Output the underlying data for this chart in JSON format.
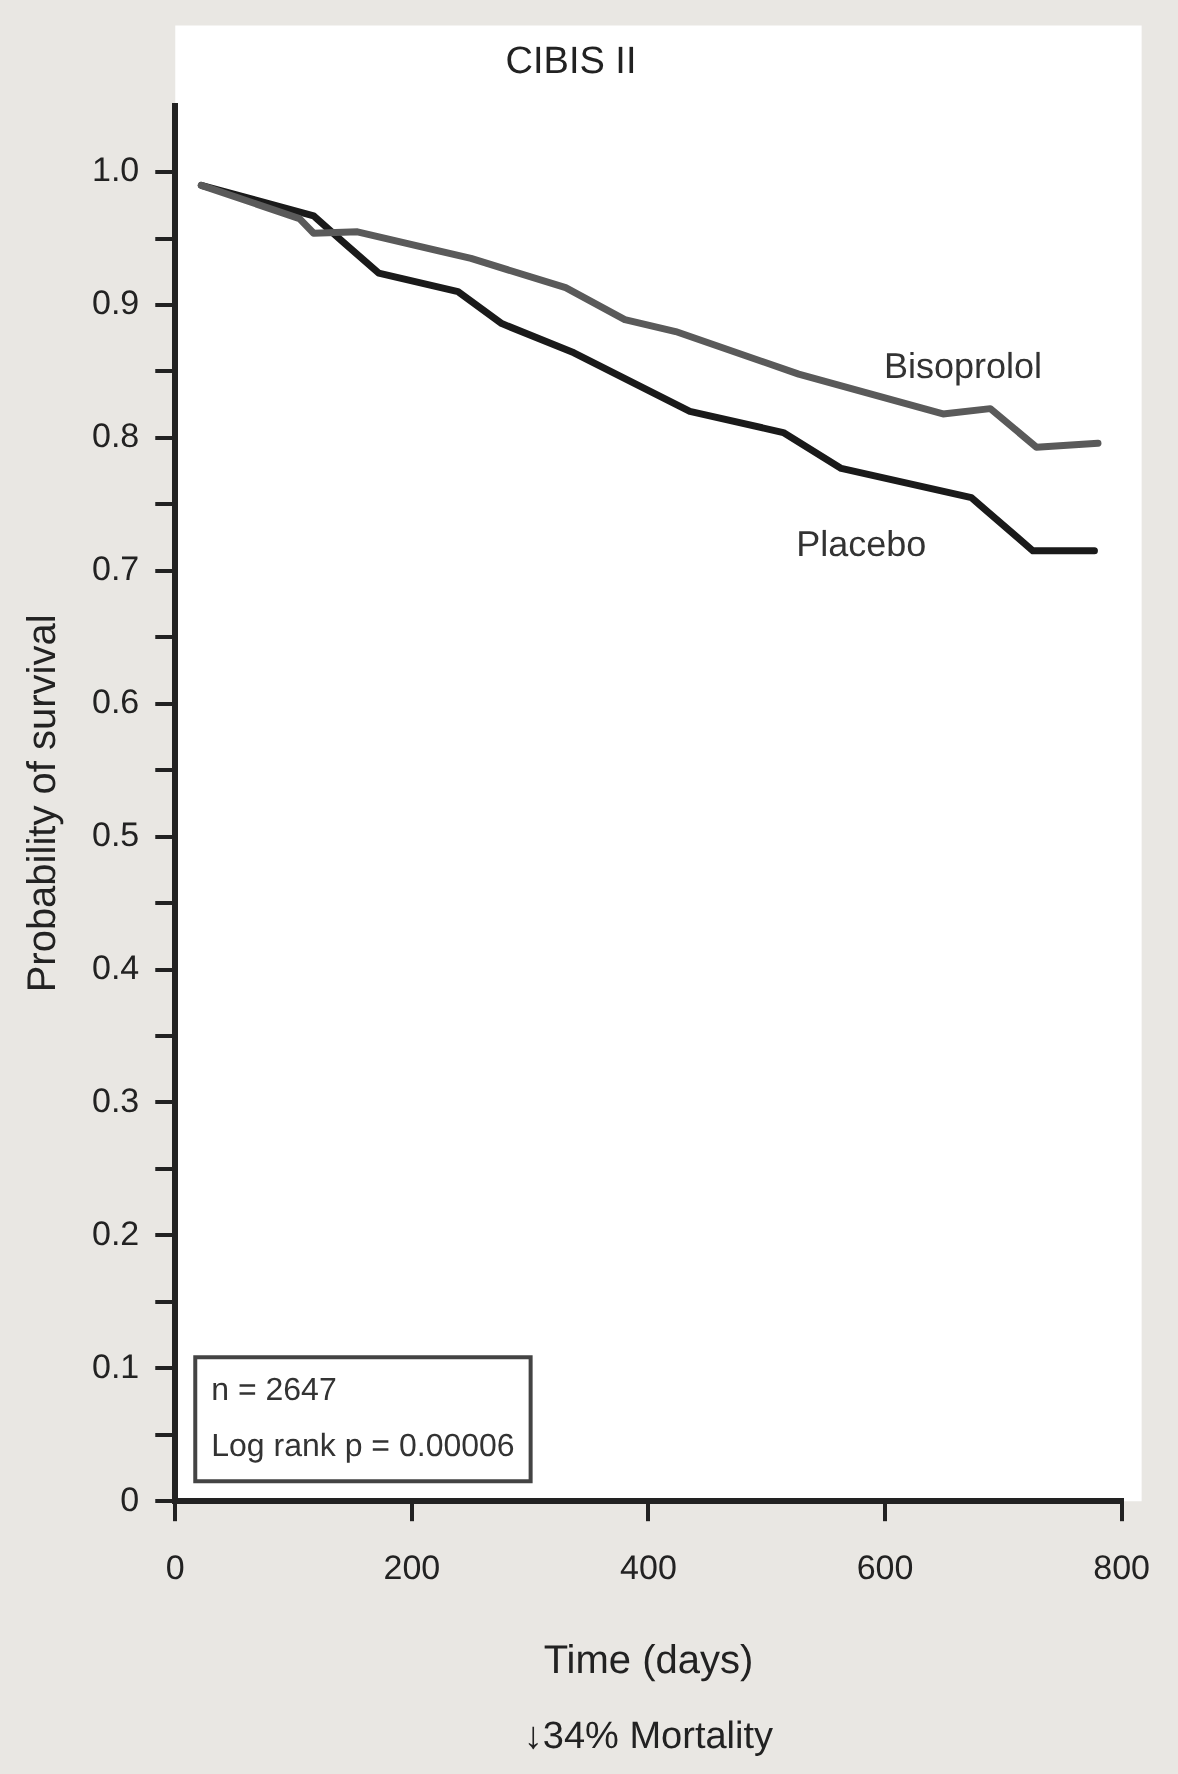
{
  "chart_data": {
    "type": "line",
    "title": "CIBIS II",
    "xlabel": "Time (days)",
    "ylabel": "Probability of survival",
    "xlim": [
      0,
      800
    ],
    "xticks": [
      0,
      200,
      400,
      600,
      800
    ],
    "ylim": [
      0,
      1.05
    ],
    "yticks": [
      {
        "value": 0,
        "label": "0"
      },
      {
        "value": 0.05,
        "label": null
      },
      0.1,
      {
        "value": 0.15,
        "label": null
      },
      0.2,
      {
        "value": 0.25,
        "label": null
      },
      0.3,
      {
        "value": 0.35,
        "label": null
      },
      0.4,
      {
        "value": 0.45,
        "label": null
      },
      0.5,
      {
        "value": 0.55,
        "label": null
      },
      0.6,
      {
        "value": 0.65,
        "label": null
      },
      0.7,
      {
        "value": 0.75,
        "label": null
      },
      0.8,
      {
        "value": 0.85,
        "label": null
      },
      0.9,
      {
        "value": 0.95,
        "label": null
      },
      {
        "value": 1,
        "label": "1.0"
      }
    ],
    "grid": false,
    "legend": false,
    "marker": "none",
    "line_style": "solid",
    "series": [
      {
        "name": "Bisoprolol",
        "color": "#5a5a5a",
        "x": [
          22,
          105,
          117,
          154,
          250,
          330,
          380,
          423,
          527,
          649,
          689,
          728,
          780
        ],
        "values": [
          0.99,
          0.965,
          0.954,
          0.955,
          0.935,
          0.913,
          0.889,
          0.88,
          0.848,
          0.818,
          0.822,
          0.793,
          0.796
        ]
      },
      {
        "name": "Placebo",
        "color": "#1a1a1a",
        "x": [
          22,
          117,
          141,
          172,
          239,
          276,
          337,
          435,
          514,
          563,
          673,
          725,
          777
        ],
        "values": [
          0.99,
          0.967,
          0.948,
          0.924,
          0.91,
          0.886,
          0.864,
          0.82,
          0.804,
          0.777,
          0.755,
          0.715,
          0.715
        ]
      }
    ],
    "annotations": [
      "n = 2647",
      "Log rank p = 0.00006",
      "↓34% Mortality"
    ]
  }
}
